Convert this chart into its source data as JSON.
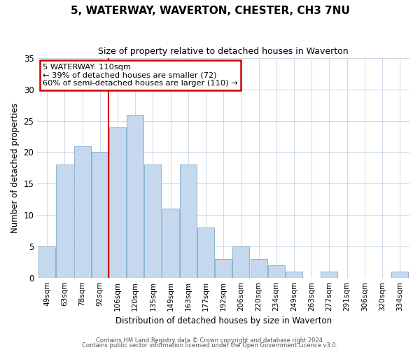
{
  "title": "5, WATERWAY, WAVERTON, CHESTER, CH3 7NU",
  "subtitle": "Size of property relative to detached houses in Waverton",
  "xlabel": "Distribution of detached houses by size in Waverton",
  "ylabel": "Number of detached properties",
  "categories": [
    "49sqm",
    "63sqm",
    "78sqm",
    "92sqm",
    "106sqm",
    "120sqm",
    "135sqm",
    "149sqm",
    "163sqm",
    "177sqm",
    "192sqm",
    "206sqm",
    "220sqm",
    "234sqm",
    "249sqm",
    "263sqm",
    "277sqm",
    "291sqm",
    "306sqm",
    "320sqm",
    "334sqm"
  ],
  "values": [
    5,
    18,
    21,
    20,
    24,
    26,
    18,
    11,
    18,
    8,
    3,
    5,
    3,
    2,
    1,
    0,
    1,
    0,
    0,
    0,
    1
  ],
  "bar_color": "#c5d8ed",
  "bar_edge_color": "#8ab4d4",
  "vline_x": 3.5,
  "vline_color": "#cc0000",
  "ylim": [
    0,
    35
  ],
  "yticks": [
    0,
    5,
    10,
    15,
    20,
    25,
    30,
    35
  ],
  "annotation_text": "5 WATERWAY: 110sqm\n← 39% of detached houses are smaller (72)\n60% of semi-detached houses are larger (110) →",
  "annotation_box_color": "#ffffff",
  "annotation_box_edge_color": "#cc0000",
  "footer_line1": "Contains HM Land Registry data © Crown copyright and database right 2024.",
  "footer_line2": "Contains public sector information licensed under the Open Government Licence v3.0.",
  "background_color": "#ffffff",
  "grid_color": "#ccd9e8"
}
